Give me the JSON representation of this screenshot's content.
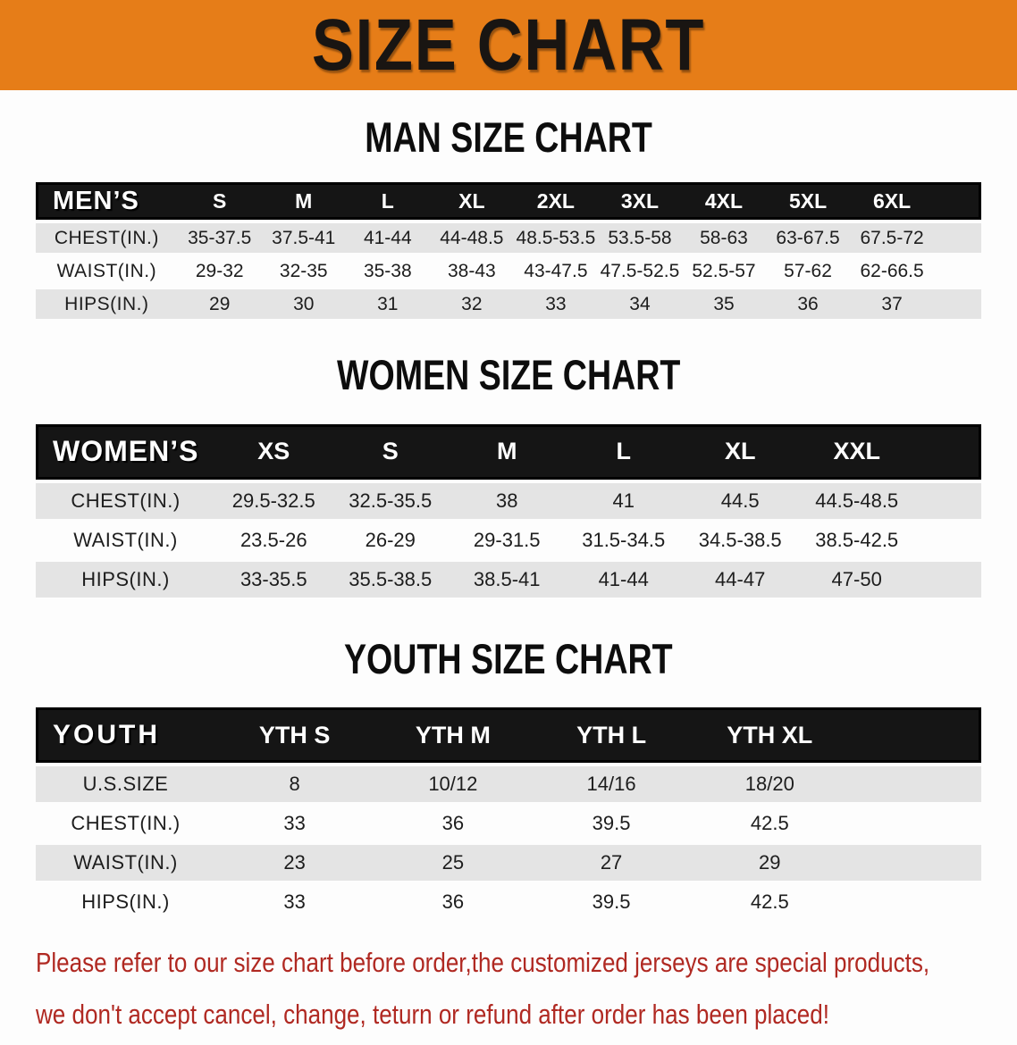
{
  "banner": {
    "title": "SIZE CHART"
  },
  "colors": {
    "banner_orange": "#e67d18",
    "header_bar_black": "#151515",
    "row_stripe_gray": "#e4e4e4",
    "disclaimer_red": "#b02922"
  },
  "sections": [
    {
      "key": "men",
      "heading": "MAN SIZE CHART",
      "corner_label": "MEN’S",
      "columns": [
        "S",
        "M",
        "L",
        "XL",
        "2XL",
        "3XL",
        "4XL",
        "5XL",
        "6XL"
      ],
      "rows": [
        {
          "label": "CHEST(IN.)",
          "values": [
            "35-37.5",
            "37.5-41",
            "41-44",
            "44-48.5",
            "48.5-53.5",
            "53.5-58",
            "58-63",
            "63-67.5",
            "67.5-72"
          ]
        },
        {
          "label": "WAIST(IN.)",
          "values": [
            "29-32",
            "32-35",
            "35-38",
            "38-43",
            "43-47.5",
            "47.5-52.5",
            "52.5-57",
            "57-62",
            "62-66.5"
          ]
        },
        {
          "label": "HIPS(IN.)",
          "values": [
            "29",
            "30",
            "31",
            "32",
            "33",
            "34",
            "35",
            "36",
            "37"
          ]
        }
      ]
    },
    {
      "key": "women",
      "heading": "WOMEN SIZE CHART",
      "corner_label": "WOMEN’S",
      "columns": [
        "XS",
        "S",
        "M",
        "L",
        "XL",
        "XXL"
      ],
      "rows": [
        {
          "label": "CHEST(IN.)",
          "values": [
            "29.5-32.5",
            "32.5-35.5",
            "38",
            "41",
            "44.5",
            "44.5-48.5"
          ]
        },
        {
          "label": "WAIST(IN.)",
          "values": [
            "23.5-26",
            "26-29",
            "29-31.5",
            "31.5-34.5",
            "34.5-38.5",
            "38.5-42.5"
          ]
        },
        {
          "label": "HIPS(IN.)",
          "values": [
            "33-35.5",
            "35.5-38.5",
            "38.5-41",
            "41-44",
            "44-47",
            "47-50"
          ]
        }
      ]
    },
    {
      "key": "youth",
      "heading": "YOUTH SIZE CHART",
      "corner_label": "YOUTH",
      "columns": [
        "YTH S",
        "YTH M",
        "YTH L",
        "YTH XL"
      ],
      "rows": [
        {
          "label": "U.S.SIZE",
          "values": [
            "8",
            "10/12",
            "14/16",
            "18/20"
          ]
        },
        {
          "label": "CHEST(IN.)",
          "values": [
            "33",
            "36",
            "39.5",
            "42.5"
          ]
        },
        {
          "label": "WAIST(IN.)",
          "values": [
            "23",
            "25",
            "27",
            "29"
          ]
        },
        {
          "label": "HIPS(IN.)",
          "values": [
            "33",
            "36",
            "39.5",
            "42.5"
          ]
        }
      ]
    }
  ],
  "disclaimer": {
    "line1": "Please refer to our size chart before order,the customized jerseys are special products,",
    "line2": "we don't accept cancel, change, teturn or refund after order has been placed!"
  }
}
